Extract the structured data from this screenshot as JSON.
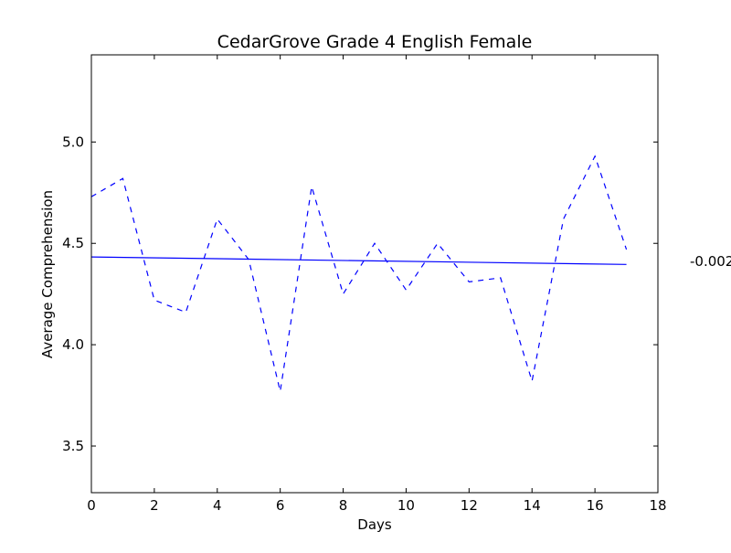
{
  "chart_data": {
    "type": "line",
    "title": "CedarGrove Grade 4 English Female",
    "xlabel": "Days",
    "ylabel": "Average Comprehension",
    "xlim": [
      0,
      18
    ],
    "ylim": [
      3.27,
      5.43
    ],
    "xticks": [
      0,
      2,
      4,
      6,
      8,
      10,
      12,
      14,
      16,
      18
    ],
    "yticks": [
      3.5,
      4.0,
      4.5,
      5.0
    ],
    "ytick_labels": [
      "3.5",
      "4.0",
      "4.5",
      "5.0"
    ],
    "grid": false,
    "series": [
      {
        "style": "dashed",
        "color": "#0000ff",
        "x": [
          0,
          1,
          2,
          3,
          4,
          5,
          6,
          7,
          8,
          9,
          10,
          11,
          12,
          13,
          14,
          15,
          16,
          17
        ],
        "y": [
          4.73,
          4.82,
          4.22,
          4.16,
          4.62,
          4.42,
          3.77,
          4.78,
          4.25,
          4.5,
          4.27,
          4.5,
          4.31,
          4.33,
          3.82,
          4.62,
          4.93,
          4.47
        ]
      },
      {
        "style": "solid",
        "color": "#0000ff",
        "x": [
          0,
          17
        ],
        "y": [
          4.433,
          4.396
        ]
      }
    ],
    "annotation": {
      "text": "-0.002",
      "y": 4.41
    }
  }
}
